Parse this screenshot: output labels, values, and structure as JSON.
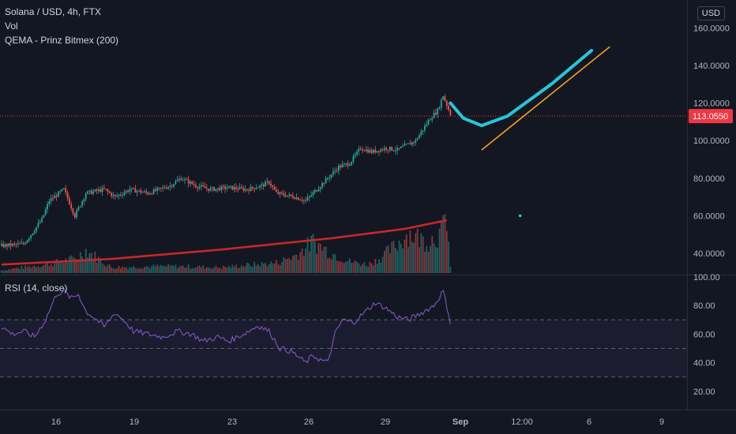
{
  "header": {
    "symbol_line": "Solana / USD, 4h, FTX",
    "vol_label": "Vol",
    "qema_label": "QEMA - Prinz Bitmex (200)",
    "currency": "USD"
  },
  "rsi_panel": {
    "label": "RSI (14, close)"
  },
  "colors": {
    "background": "#131722",
    "up": "#26a69a",
    "down": "#ef5350",
    "qema": "#c62828",
    "rsi_line": "#7e57c2",
    "projection_curve": "#26c6da",
    "trend_line": "#f7a21b",
    "price_badge": "#f23645",
    "grid": "#1e222d"
  },
  "chart_data": [
    {
      "type": "candlestick",
      "title": "Solana / USD, 4h, FTX",
      "x_ticks": [
        "16",
        "19",
        "23",
        "26",
        "29",
        "Sep",
        "12:00",
        "6",
        "9"
      ],
      "y_ticks": [
        "160.0000",
        "140.0000",
        "120.0000",
        "100.0000",
        "80.0000",
        "60.0000",
        "40.0000"
      ],
      "ylim": [
        32,
        168
      ],
      "current_price": "113.0550",
      "price_trajectory": [
        [
          0,
          44
        ],
        [
          12,
          45
        ],
        [
          16,
          50
        ],
        [
          22,
          58
        ],
        [
          26,
          68
        ],
        [
          34,
          74
        ],
        [
          40,
          60
        ],
        [
          46,
          72
        ],
        [
          56,
          74
        ],
        [
          62,
          70
        ],
        [
          70,
          74
        ],
        [
          80,
          72
        ],
        [
          92,
          76
        ],
        [
          98,
          80
        ],
        [
          106,
          76
        ],
        [
          114,
          74
        ],
        [
          124,
          75
        ],
        [
          134,
          74
        ],
        [
          142,
          76
        ],
        [
          146,
          78
        ],
        [
          150,
          72
        ],
        [
          160,
          70
        ],
        [
          166,
          68
        ],
        [
          170,
          72
        ],
        [
          176,
          78
        ],
        [
          180,
          82
        ],
        [
          184,
          86
        ],
        [
          190,
          88
        ],
        [
          196,
          96
        ],
        [
          202,
          94
        ],
        [
          210,
          96
        ],
        [
          216,
          95
        ],
        [
          222,
          98
        ],
        [
          226,
          100
        ],
        [
          230,
          106
        ],
        [
          234,
          112
        ],
        [
          238,
          116
        ],
        [
          241,
          124
        ],
        [
          243,
          119
        ],
        [
          245,
          114
        ]
      ],
      "volume_trajectory": [
        [
          0,
          0.05
        ],
        [
          24,
          0.15
        ],
        [
          40,
          0.25
        ],
        [
          46,
          0.4
        ],
        [
          60,
          0.1
        ],
        [
          90,
          0.12
        ],
        [
          120,
          0.1
        ],
        [
          150,
          0.18
        ],
        [
          160,
          0.3
        ],
        [
          170,
          0.55
        ],
        [
          180,
          0.35
        ],
        [
          190,
          0.2
        ],
        [
          200,
          0.15
        ],
        [
          206,
          0.25
        ],
        [
          214,
          0.45
        ],
        [
          222,
          0.7
        ],
        [
          232,
          0.55
        ],
        [
          240,
          0.7
        ],
        [
          243,
          1.0
        ],
        [
          245,
          0.1
        ]
      ],
      "qema_trajectory": [
        [
          0,
          34
        ],
        [
          60,
          37
        ],
        [
          120,
          42
        ],
        [
          180,
          48
        ],
        [
          220,
          53
        ],
        [
          245,
          58
        ]
      ],
      "projection_curve": [
        [
          245,
          120
        ],
        [
          252,
          112
        ],
        [
          262,
          108
        ],
        [
          276,
          113
        ],
        [
          300,
          130
        ],
        [
          322,
          148
        ]
      ],
      "trend_line": [
        [
          262,
          95
        ],
        [
          332,
          150
        ]
      ],
      "marker_point": [
        283,
        60
      ]
    },
    {
      "type": "line",
      "title": "RSI (14, close)",
      "y_ticks": [
        "100.00",
        "80.00",
        "60.00",
        "40.00",
        "20.00"
      ],
      "ylim": [
        10,
        100
      ],
      "bands": [
        30,
        50,
        70
      ],
      "rsi_trajectory": [
        [
          0,
          65
        ],
        [
          6,
          60
        ],
        [
          12,
          62
        ],
        [
          18,
          58
        ],
        [
          24,
          70
        ],
        [
          30,
          88
        ],
        [
          34,
          90
        ],
        [
          38,
          85
        ],
        [
          42,
          88
        ],
        [
          46,
          76
        ],
        [
          52,
          70
        ],
        [
          56,
          65
        ],
        [
          62,
          75
        ],
        [
          68,
          68
        ],
        [
          72,
          62
        ],
        [
          80,
          60
        ],
        [
          88,
          58
        ],
        [
          96,
          62
        ],
        [
          104,
          60
        ],
        [
          110,
          55
        ],
        [
          118,
          58
        ],
        [
          124,
          55
        ],
        [
          132,
          60
        ],
        [
          140,
          66
        ],
        [
          146,
          62
        ],
        [
          152,
          50
        ],
        [
          158,
          48
        ],
        [
          162,
          44
        ],
        [
          166,
          40
        ],
        [
          170,
          45
        ],
        [
          174,
          42
        ],
        [
          178,
          40
        ],
        [
          182,
          60
        ],
        [
          186,
          70
        ],
        [
          192,
          68
        ],
        [
          198,
          75
        ],
        [
          204,
          82
        ],
        [
          210,
          78
        ],
        [
          216,
          72
        ],
        [
          222,
          70
        ],
        [
          228,
          74
        ],
        [
          236,
          80
        ],
        [
          241,
          90
        ],
        [
          243,
          80
        ],
        [
          245,
          68
        ]
      ]
    }
  ]
}
